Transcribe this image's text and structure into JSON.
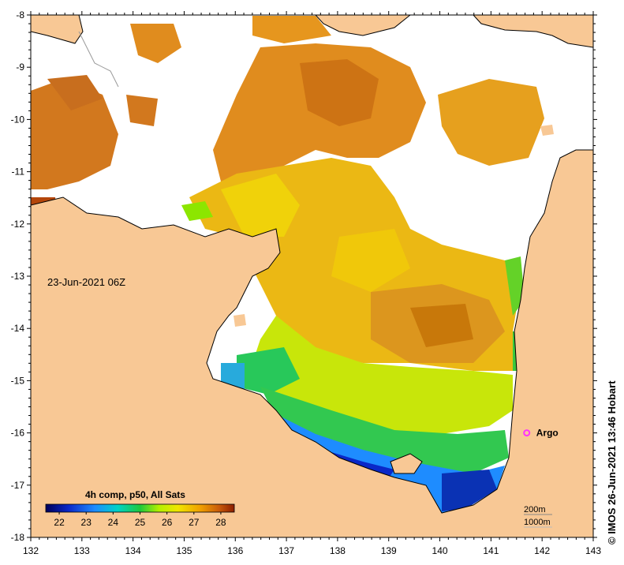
{
  "map": {
    "date_label": "23-Jun-2021 06Z",
    "credit": "© IMOS 26-Jun-2021 13:46 Hobart",
    "argo_label": "Argo",
    "depth_labels": [
      "200m",
      "1000m"
    ],
    "lon_ticks": [
      "132",
      "133",
      "134",
      "135",
      "136",
      "137",
      "138",
      "139",
      "140",
      "141",
      "142",
      "143"
    ],
    "lat_ticks": [
      "-8",
      "-9",
      "-10",
      "-11",
      "-12",
      "-13",
      "-14",
      "-15",
      "-16",
      "-17",
      "-18"
    ],
    "lon_range": [
      132,
      143
    ],
    "lat_range": [
      -18,
      -8
    ],
    "argo_position": {
      "lon": 141.7,
      "lat": -16.0
    }
  },
  "colorbar": {
    "title": "4h comp, p50, All Sats",
    "tick_labels": [
      "22",
      "23",
      "24",
      "25",
      "26",
      "27",
      "28"
    ],
    "range": [
      21.5,
      28.5
    ]
  },
  "colors": {
    "land": "#f8c895",
    "no_data": "#ffffff",
    "argo": "#ff33ff"
  }
}
